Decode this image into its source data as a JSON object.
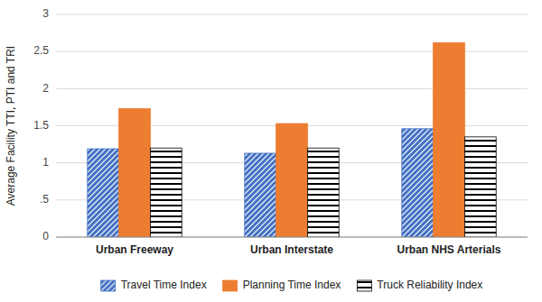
{
  "chart_data": {
    "type": "bar",
    "categories": [
      "Urban Freeway",
      "Urban Interstate",
      "Urban NHS Arterials"
    ],
    "series": [
      {
        "name": "Travel Time Index",
        "color": "#4472C4",
        "values": [
          1.19,
          1.13,
          1.46
        ]
      },
      {
        "name": "Planning Time Index",
        "color": "#ED7D31",
        "values": [
          1.73,
          1.53,
          2.62
        ]
      },
      {
        "name": "Truck Reliability Index",
        "color": "#000000",
        "values": [
          1.2,
          1.2,
          1.35
        ]
      }
    ],
    "ylabel": "Average Facility TTI, PTI and TRI",
    "ylim": [
      0,
      3.0
    ],
    "yticks": [
      0,
      {
        "value": 0.5,
        "label": ".5"
      },
      1,
      1.5,
      2,
      2.5,
      3
    ],
    "grid": true,
    "legend": "bottom"
  }
}
